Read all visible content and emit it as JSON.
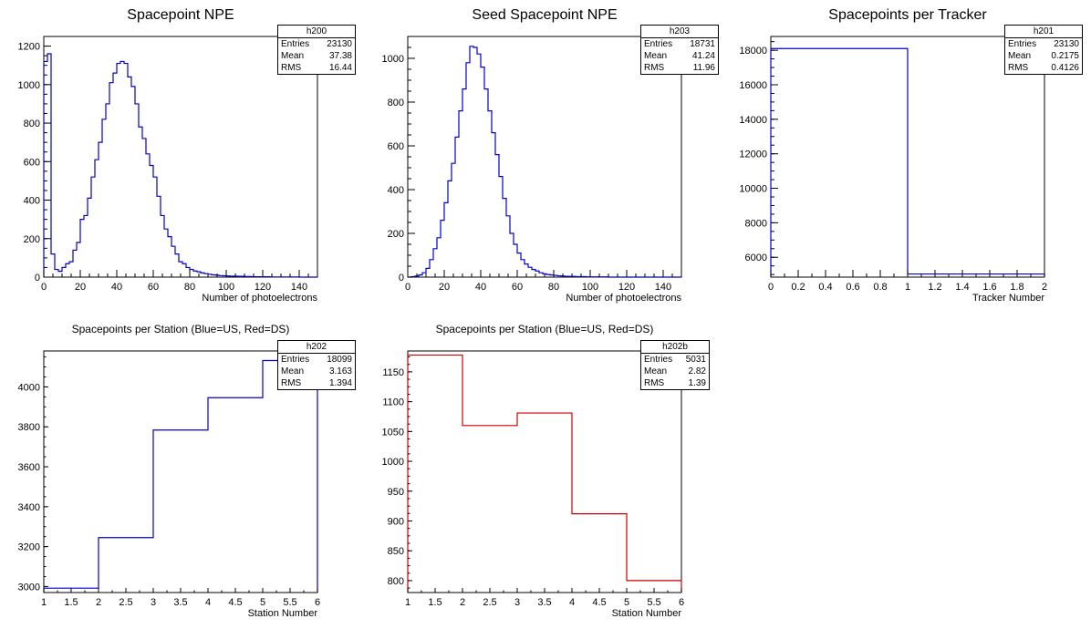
{
  "chart_data": [
    {
      "id": "h200",
      "type": "histogram",
      "title": "Spacepoint NPE",
      "xlabel": "Number of photoelectrons",
      "ylabel": "",
      "xlim": [
        0,
        150
      ],
      "ylim": [
        0,
        1250
      ],
      "xticks": [
        0,
        20,
        40,
        60,
        80,
        100,
        120,
        140
      ],
      "yticks": [
        0,
        200,
        400,
        600,
        800,
        1000,
        1200
      ],
      "bin_width": 2,
      "color": "#0000cc",
      "values": [
        1120,
        1160,
        120,
        40,
        30,
        50,
        70,
        80,
        140,
        180,
        300,
        320,
        410,
        520,
        610,
        700,
        820,
        900,
        1010,
        1060,
        1110,
        1120,
        1110,
        1040,
        990,
        900,
        780,
        720,
        640,
        580,
        520,
        420,
        320,
        250,
        210,
        160,
        120,
        80,
        70,
        50,
        40,
        32,
        28,
        22,
        18,
        15,
        12,
        10,
        8,
        7,
        6,
        5,
        5,
        4,
        4,
        3,
        3,
        2,
        2,
        2,
        2,
        2,
        1,
        1,
        1,
        1,
        1,
        1,
        1,
        1,
        0,
        0,
        0,
        0,
        0
      ],
      "stats": {
        "name": "h200",
        "entries_label": "Entries",
        "entries": "23130",
        "mean_label": "Mean",
        "mean": "37.38",
        "rms_label": "RMS",
        "rms": "16.44"
      }
    },
    {
      "id": "h203",
      "type": "histogram",
      "title": "Seed Spacepoint NPE",
      "xlabel": "Number of photoelectrons",
      "ylabel": "",
      "xlim": [
        0,
        150
      ],
      "ylim": [
        0,
        1100
      ],
      "xticks": [
        0,
        20,
        40,
        60,
        80,
        100,
        120,
        140
      ],
      "yticks": [
        0,
        200,
        400,
        600,
        800,
        1000
      ],
      "bin_width": 2,
      "color": "#0000cc",
      "values": [
        0,
        2,
        5,
        10,
        20,
        40,
        80,
        130,
        180,
        260,
        340,
        440,
        520,
        640,
        760,
        860,
        980,
        1055,
        1050,
        1020,
        960,
        860,
        760,
        660,
        560,
        460,
        360,
        280,
        200,
        150,
        110,
        80,
        60,
        45,
        35,
        28,
        20,
        15,
        12,
        10,
        8,
        6,
        5,
        4,
        3,
        3,
        2,
        2,
        2,
        1,
        1,
        1,
        1,
        1,
        1,
        0,
        0,
        0,
        0,
        0,
        0,
        0,
        0,
        0,
        0,
        0,
        0,
        0,
        0,
        0,
        0,
        0,
        0,
        0,
        0
      ],
      "stats": {
        "name": "h203",
        "entries_label": "Entries",
        "entries": "18731",
        "mean_label": "Mean",
        "mean": "41.24",
        "rms_label": "RMS",
        "rms": "11.96"
      }
    },
    {
      "id": "h201",
      "type": "histogram",
      "title": "Spacepoints per Tracker",
      "xlabel": "Tracker Number",
      "ylabel": "",
      "xlim": [
        0,
        2
      ],
      "ylim": [
        4850,
        18800
      ],
      "xticks": [
        0,
        0.2,
        0.4,
        0.6,
        0.8,
        1,
        1.2,
        1.4,
        1.6,
        1.8,
        2
      ],
      "yticks": [
        6000,
        8000,
        10000,
        12000,
        14000,
        16000,
        18000
      ],
      "bin_width": 1,
      "color": "#0000cc",
      "values": [
        18099,
        5031
      ],
      "stats": {
        "name": "h201",
        "entries_label": "Entries",
        "entries": "23130",
        "mean_label": "Mean",
        "mean": "0.2175",
        "rms_label": "RMS",
        "rms": "0.4126"
      }
    },
    {
      "id": "h202",
      "type": "histogram",
      "title": "Spacepoints per Station (Blue=US, Red=DS)",
      "xlabel": "Station Number",
      "ylabel": "",
      "xlim": [
        1,
        6
      ],
      "ylim": [
        2970,
        4180
      ],
      "xticks": [
        1,
        1.5,
        2,
        2.5,
        3,
        3.5,
        4,
        4.5,
        5,
        5.5,
        6
      ],
      "yticks": [
        3000,
        3200,
        3400,
        3600,
        3800,
        4000
      ],
      "bin_width": 1,
      "color": "#0000cc",
      "values": [
        2992,
        3245,
        3784,
        3946,
        4132
      ],
      "stats": {
        "name": "h202",
        "entries_label": "Entries",
        "entries": "18099",
        "mean_label": "Mean",
        "mean": "3.163",
        "rms_label": "RMS",
        "rms": "1.394"
      }
    },
    {
      "id": "h202b",
      "type": "histogram",
      "title": "Spacepoints per Station (Blue=US, Red=DS)",
      "xlabel": "Station Number",
      "ylabel": "",
      "xlim": [
        1,
        6
      ],
      "ylim": [
        780,
        1185
      ],
      "xticks": [
        1,
        1.5,
        2,
        2.5,
        3,
        3.5,
        4,
        4.5,
        5,
        5.5,
        6
      ],
      "yticks": [
        800,
        850,
        900,
        950,
        1000,
        1050,
        1100,
        1150
      ],
      "bin_width": 1,
      "color": "#cc0000",
      "values": [
        1178,
        1060,
        1081,
        912,
        800
      ],
      "stats": {
        "name": "h202b",
        "entries_label": "Entries",
        "entries": "5031",
        "mean_label": "Mean",
        "mean": "2.82",
        "rms_label": "RMS",
        "rms": "1.39"
      }
    }
  ]
}
